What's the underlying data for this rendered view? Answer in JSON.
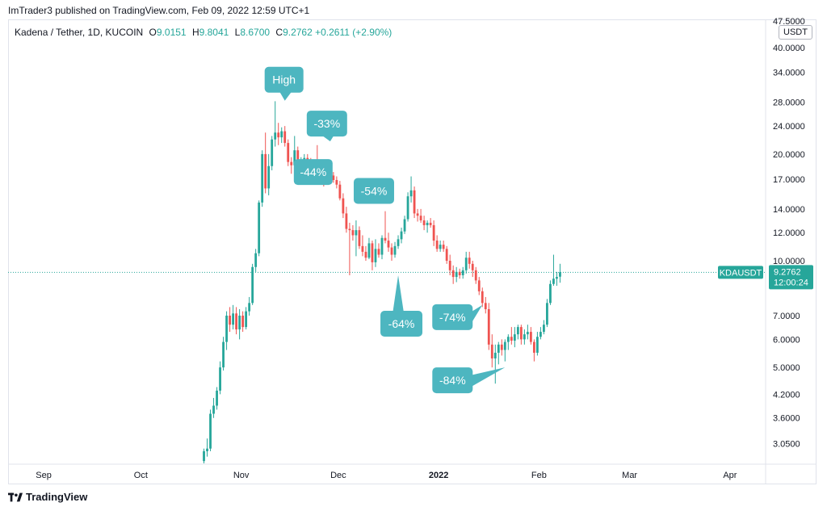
{
  "header": {
    "published_by": "ImTrader3 published on TradingView.com, Feb 09, 2022 12:59 UTC+1"
  },
  "legend": {
    "symbol": "Kadena / Tether, 1D, KUCOIN",
    "open_label": "O",
    "open": "9.0151",
    "high_label": "H",
    "high": "9.8041",
    "low_label": "L",
    "low": "8.6700",
    "close_label": "C",
    "close": "9.2762",
    "change": "+0.2611 (+2.90%)"
  },
  "currency": "USDT",
  "footer": {
    "brand": "TradingView"
  },
  "colors": {
    "up": "#26a69a",
    "down": "#ef5350",
    "callout": "#4db6c0",
    "price_line": "#26a69a"
  },
  "chart_data": {
    "type": "candlestick",
    "scale": "log",
    "x_axis": {
      "labels": [
        {
          "text": "Sep",
          "date": "2021-09-01"
        },
        {
          "text": "Oct",
          "date": "2021-10-01"
        },
        {
          "text": "Nov",
          "date": "2021-11-01"
        },
        {
          "text": "Dec",
          "date": "2021-12-01"
        },
        {
          "text": "2022",
          "date": "2022-01-01",
          "bold": true
        },
        {
          "text": "Feb",
          "date": "2022-02-01"
        },
        {
          "text": "Mar",
          "date": "2022-03-01"
        },
        {
          "text": "Apr",
          "date": "2022-04-01"
        }
      ],
      "range": [
        "2021-08-21",
        "2022-04-12"
      ]
    },
    "y_axis": {
      "ticks": [
        "3.0500",
        "3.6000",
        "4.2000",
        "5.0000",
        "6.0000",
        "7.0000",
        "10.0000",
        "12.0000",
        "14.0000",
        "17.0000",
        "20.0000",
        "24.0000",
        "28.0000",
        "34.0000",
        "40.0000",
        "47.5000"
      ],
      "range": [
        2.68,
        48
      ]
    },
    "last_price": {
      "symbol": "KDAUSDT",
      "price": "9.2762",
      "countdown": "12:00:24",
      "value": 9.2762
    },
    "annotations": [
      {
        "text": "High",
        "date": "2021-11-10",
        "price": 28
      },
      {
        "text": "-33%",
        "date": "2021-11-24",
        "price": 21.5
      },
      {
        "text": "-44%",
        "date": "2021-11-24",
        "price": 17.8
      },
      {
        "text": "-54%",
        "date": "2021-12-13",
        "price": 14.4
      },
      {
        "text": "-64%",
        "date": "2021-12-19",
        "price": 9.1
      },
      {
        "text": "-74%",
        "date": "2022-01-14",
        "price": 7.5
      },
      {
        "text": "-84%",
        "date": "2022-01-21",
        "price": 5.0
      }
    ],
    "candles": [
      {
        "d": "2021-10-20",
        "o": 2.72,
        "h": 2.95,
        "l": 2.68,
        "c": 2.9
      },
      {
        "d": "2021-10-21",
        "o": 2.9,
        "h": 3.15,
        "l": 2.8,
        "c": 2.95
      },
      {
        "d": "2021-10-22",
        "o": 2.95,
        "h": 3.8,
        "l": 2.9,
        "c": 3.7
      },
      {
        "d": "2021-10-23",
        "o": 3.7,
        "h": 4.1,
        "l": 3.6,
        "c": 3.9
      },
      {
        "d": "2021-10-24",
        "o": 3.9,
        "h": 4.4,
        "l": 3.8,
        "c": 4.3
      },
      {
        "d": "2021-10-25",
        "o": 4.3,
        "h": 5.2,
        "l": 4.2,
        "c": 5.0
      },
      {
        "d": "2021-10-26",
        "o": 5.0,
        "h": 6.1,
        "l": 4.9,
        "c": 5.9
      },
      {
        "d": "2021-10-27",
        "o": 5.9,
        "h": 7.2,
        "l": 5.6,
        "c": 7.0
      },
      {
        "d": "2021-10-28",
        "o": 7.0,
        "h": 7.4,
        "l": 6.3,
        "c": 6.6
      },
      {
        "d": "2021-10-29",
        "o": 6.6,
        "h": 7.5,
        "l": 6.4,
        "c": 7.1
      },
      {
        "d": "2021-10-30",
        "o": 7.1,
        "h": 7.4,
        "l": 6.2,
        "c": 6.4
      },
      {
        "d": "2021-10-31",
        "o": 6.4,
        "h": 7.3,
        "l": 6.0,
        "c": 7.0
      },
      {
        "d": "2021-11-01",
        "o": 7.0,
        "h": 7.2,
        "l": 6.3,
        "c": 6.5
      },
      {
        "d": "2021-11-02",
        "o": 6.5,
        "h": 7.4,
        "l": 6.4,
        "c": 7.2
      },
      {
        "d": "2021-11-03",
        "o": 7.2,
        "h": 7.9,
        "l": 7.0,
        "c": 7.6
      },
      {
        "d": "2021-11-04",
        "o": 7.6,
        "h": 9.8,
        "l": 7.5,
        "c": 9.6
      },
      {
        "d": "2021-11-05",
        "o": 9.6,
        "h": 10.8,
        "l": 9.3,
        "c": 10.5
      },
      {
        "d": "2021-11-06",
        "o": 10.5,
        "h": 14.8,
        "l": 10.3,
        "c": 14.6
      },
      {
        "d": "2021-11-07",
        "o": 14.6,
        "h": 20.5,
        "l": 14.2,
        "c": 20.0
      },
      {
        "d": "2021-11-08",
        "o": 20.0,
        "h": 23.0,
        "l": 15.5,
        "c": 16.0
      },
      {
        "d": "2021-11-09",
        "o": 16.0,
        "h": 20.0,
        "l": 15.3,
        "c": 18.5
      },
      {
        "d": "2021-11-10",
        "o": 18.5,
        "h": 22.5,
        "l": 18.0,
        "c": 22.0
      },
      {
        "d": "2021-11-11",
        "o": 22.0,
        "h": 28.2,
        "l": 21.0,
        "c": 23.0
      },
      {
        "d": "2021-11-12",
        "o": 23.0,
        "h": 24.5,
        "l": 21.2,
        "c": 22.3
      },
      {
        "d": "2021-11-13",
        "o": 22.3,
        "h": 23.8,
        "l": 21.5,
        "c": 23.2
      },
      {
        "d": "2021-11-14",
        "o": 23.2,
        "h": 24.0,
        "l": 21.0,
        "c": 21.5
      },
      {
        "d": "2021-11-15",
        "o": 21.5,
        "h": 22.0,
        "l": 18.5,
        "c": 19.0
      },
      {
        "d": "2021-11-16",
        "o": 19.0,
        "h": 19.6,
        "l": 17.6,
        "c": 18.6
      },
      {
        "d": "2021-11-17",
        "o": 18.6,
        "h": 22.5,
        "l": 18.2,
        "c": 20.5
      },
      {
        "d": "2021-11-18",
        "o": 20.5,
        "h": 21.0,
        "l": 18.2,
        "c": 19.0
      },
      {
        "d": "2021-11-19",
        "o": 19.0,
        "h": 19.6,
        "l": 18.2,
        "c": 19.2
      },
      {
        "d": "2021-11-20",
        "o": 19.2,
        "h": 20.0,
        "l": 18.6,
        "c": 19.5
      },
      {
        "d": "2021-11-21",
        "o": 19.5,
        "h": 20.0,
        "l": 18.4,
        "c": 18.8
      },
      {
        "d": "2021-11-22",
        "o": 18.8,
        "h": 19.5,
        "l": 17.0,
        "c": 17.5
      },
      {
        "d": "2021-11-23",
        "o": 17.5,
        "h": 18.8,
        "l": 17.2,
        "c": 18.3
      },
      {
        "d": "2021-11-24",
        "o": 18.3,
        "h": 21.2,
        "l": 16.6,
        "c": 17.0
      },
      {
        "d": "2021-11-25",
        "o": 17.0,
        "h": 18.0,
        "l": 16.6,
        "c": 17.6
      },
      {
        "d": "2021-11-26",
        "o": 17.6,
        "h": 17.8,
        "l": 16.2,
        "c": 16.9
      },
      {
        "d": "2021-11-27",
        "o": 16.9,
        "h": 17.5,
        "l": 16.5,
        "c": 17.0
      },
      {
        "d": "2021-11-28",
        "o": 17.0,
        "h": 17.8,
        "l": 16.6,
        "c": 17.4
      },
      {
        "d": "2021-11-29",
        "o": 17.4,
        "h": 17.8,
        "l": 16.6,
        "c": 16.9
      },
      {
        "d": "2021-11-30",
        "o": 16.9,
        "h": 17.3,
        "l": 16.0,
        "c": 16.4
      },
      {
        "d": "2021-12-01",
        "o": 16.4,
        "h": 16.8,
        "l": 14.8,
        "c": 15.0
      },
      {
        "d": "2021-12-02",
        "o": 15.0,
        "h": 15.5,
        "l": 13.2,
        "c": 13.6
      },
      {
        "d": "2021-12-03",
        "o": 13.6,
        "h": 14.2,
        "l": 12.0,
        "c": 12.3
      },
      {
        "d": "2021-12-04",
        "o": 12.3,
        "h": 12.8,
        "l": 9.1,
        "c": 12.2
      },
      {
        "d": "2021-12-05",
        "o": 12.2,
        "h": 12.6,
        "l": 11.4,
        "c": 11.8
      },
      {
        "d": "2021-12-06",
        "o": 11.8,
        "h": 13.0,
        "l": 10.3,
        "c": 12.2
      },
      {
        "d": "2021-12-07",
        "o": 12.2,
        "h": 12.5,
        "l": 10.8,
        "c": 11.0
      },
      {
        "d": "2021-12-08",
        "o": 11.0,
        "h": 11.8,
        "l": 10.3,
        "c": 10.6
      },
      {
        "d": "2021-12-09",
        "o": 10.6,
        "h": 11.0,
        "l": 10.0,
        "c": 10.2
      },
      {
        "d": "2021-12-10",
        "o": 10.2,
        "h": 11.6,
        "l": 10.1,
        "c": 11.2
      },
      {
        "d": "2021-12-11",
        "o": 11.2,
        "h": 11.4,
        "l": 9.4,
        "c": 9.9
      },
      {
        "d": "2021-12-12",
        "o": 9.9,
        "h": 11.5,
        "l": 9.6,
        "c": 10.8
      },
      {
        "d": "2021-12-13",
        "o": 10.8,
        "h": 11.2,
        "l": 10.2,
        "c": 10.4
      },
      {
        "d": "2021-12-14",
        "o": 10.4,
        "h": 11.8,
        "l": 10.1,
        "c": 11.6
      },
      {
        "d": "2021-12-15",
        "o": 11.6,
        "h": 13.8,
        "l": 11.2,
        "c": 11.4
      },
      {
        "d": "2021-12-16",
        "o": 11.4,
        "h": 12.0,
        "l": 10.6,
        "c": 10.9
      },
      {
        "d": "2021-12-17",
        "o": 10.9,
        "h": 11.2,
        "l": 10.0,
        "c": 10.4
      },
      {
        "d": "2021-12-18",
        "o": 10.4,
        "h": 11.3,
        "l": 10.2,
        "c": 11.0
      },
      {
        "d": "2021-12-19",
        "o": 11.0,
        "h": 11.8,
        "l": 10.8,
        "c": 11.5
      },
      {
        "d": "2021-12-20",
        "o": 11.5,
        "h": 12.4,
        "l": 11.2,
        "c": 12.1
      },
      {
        "d": "2021-12-21",
        "o": 12.1,
        "h": 13.4,
        "l": 11.9,
        "c": 13.1
      },
      {
        "d": "2021-12-22",
        "o": 13.1,
        "h": 15.6,
        "l": 12.9,
        "c": 15.2
      },
      {
        "d": "2021-12-23",
        "o": 15.2,
        "h": 17.3,
        "l": 14.6,
        "c": 15.8
      },
      {
        "d": "2021-12-24",
        "o": 15.8,
        "h": 16.2,
        "l": 13.2,
        "c": 13.6
      },
      {
        "d": "2021-12-25",
        "o": 13.6,
        "h": 14.0,
        "l": 12.9,
        "c": 13.4
      },
      {
        "d": "2021-12-26",
        "o": 13.4,
        "h": 14.0,
        "l": 12.8,
        "c": 13.0
      },
      {
        "d": "2021-12-27",
        "o": 13.0,
        "h": 13.4,
        "l": 12.2,
        "c": 12.6
      },
      {
        "d": "2021-12-28",
        "o": 12.6,
        "h": 13.0,
        "l": 12.0,
        "c": 12.8
      },
      {
        "d": "2021-12-29",
        "o": 12.8,
        "h": 13.2,
        "l": 12.4,
        "c": 12.6
      },
      {
        "d": "2021-12-30",
        "o": 12.6,
        "h": 13.0,
        "l": 11.0,
        "c": 11.4
      },
      {
        "d": "2021-12-31",
        "o": 11.4,
        "h": 11.8,
        "l": 10.6,
        "c": 10.8
      },
      {
        "d": "2022-01-01",
        "o": 10.8,
        "h": 11.4,
        "l": 10.6,
        "c": 11.1
      },
      {
        "d": "2022-01-02",
        "o": 11.1,
        "h": 11.4,
        "l": 10.6,
        "c": 10.8
      },
      {
        "d": "2022-01-03",
        "o": 10.8,
        "h": 11.0,
        "l": 9.8,
        "c": 10.0
      },
      {
        "d": "2022-01-04",
        "o": 10.0,
        "h": 10.4,
        "l": 9.1,
        "c": 9.4
      },
      {
        "d": "2022-01-05",
        "o": 9.4,
        "h": 9.7,
        "l": 8.6,
        "c": 9.0
      },
      {
        "d": "2022-01-06",
        "o": 9.0,
        "h": 9.6,
        "l": 8.7,
        "c": 9.3
      },
      {
        "d": "2022-01-07",
        "o": 9.3,
        "h": 9.5,
        "l": 8.9,
        "c": 9.1
      },
      {
        "d": "2022-01-08",
        "o": 9.1,
        "h": 9.6,
        "l": 8.9,
        "c": 9.4
      },
      {
        "d": "2022-01-09",
        "o": 9.4,
        "h": 10.6,
        "l": 9.2,
        "c": 10.2
      },
      {
        "d": "2022-01-10",
        "o": 10.2,
        "h": 10.6,
        "l": 9.5,
        "c": 9.8
      },
      {
        "d": "2022-01-11",
        "o": 9.8,
        "h": 10.0,
        "l": 9.0,
        "c": 9.4
      },
      {
        "d": "2022-01-12",
        "o": 9.4,
        "h": 9.6,
        "l": 8.6,
        "c": 8.8
      },
      {
        "d": "2022-01-13",
        "o": 8.8,
        "h": 9.0,
        "l": 8.0,
        "c": 8.2
      },
      {
        "d": "2022-01-14",
        "o": 8.2,
        "h": 8.4,
        "l": 7.4,
        "c": 7.6
      },
      {
        "d": "2022-01-15",
        "o": 7.6,
        "h": 7.9,
        "l": 7.1,
        "c": 7.3
      },
      {
        "d": "2022-01-16",
        "o": 7.3,
        "h": 7.6,
        "l": 5.6,
        "c": 5.8
      },
      {
        "d": "2022-01-17",
        "o": 5.8,
        "h": 6.2,
        "l": 5.0,
        "c": 5.3
      },
      {
        "d": "2022-01-18",
        "o": 5.3,
        "h": 5.8,
        "l": 4.5,
        "c": 5.5
      },
      {
        "d": "2022-01-19",
        "o": 5.5,
        "h": 5.9,
        "l": 5.1,
        "c": 5.8
      },
      {
        "d": "2022-01-20",
        "o": 5.8,
        "h": 6.0,
        "l": 5.4,
        "c": 5.6
      },
      {
        "d": "2022-01-21",
        "o": 5.6,
        "h": 6.0,
        "l": 5.2,
        "c": 5.9
      },
      {
        "d": "2022-01-22",
        "o": 5.9,
        "h": 6.2,
        "l": 5.6,
        "c": 6.1
      },
      {
        "d": "2022-01-23",
        "o": 6.1,
        "h": 6.5,
        "l": 5.8,
        "c": 5.95
      },
      {
        "d": "2022-01-24",
        "o": 5.95,
        "h": 6.5,
        "l": 5.7,
        "c": 6.2
      },
      {
        "d": "2022-01-25",
        "o": 6.2,
        "h": 6.6,
        "l": 6.0,
        "c": 6.5
      },
      {
        "d": "2022-01-26",
        "o": 6.5,
        "h": 6.6,
        "l": 5.8,
        "c": 6.0
      },
      {
        "d": "2022-01-27",
        "o": 6.0,
        "h": 6.4,
        "l": 5.8,
        "c": 6.2
      },
      {
        "d": "2022-01-28",
        "o": 6.2,
        "h": 6.6,
        "l": 6.0,
        "c": 6.3
      },
      {
        "d": "2022-01-29",
        "o": 6.3,
        "h": 6.5,
        "l": 5.8,
        "c": 5.9
      },
      {
        "d": "2022-01-30",
        "o": 5.9,
        "h": 6.0,
        "l": 5.2,
        "c": 5.5
      },
      {
        "d": "2022-01-31",
        "o": 5.5,
        "h": 6.3,
        "l": 5.4,
        "c": 6.1
      },
      {
        "d": "2022-02-01",
        "o": 6.1,
        "h": 6.5,
        "l": 6.0,
        "c": 6.3
      },
      {
        "d": "2022-02-02",
        "o": 6.3,
        "h": 6.8,
        "l": 6.2,
        "c": 6.6
      },
      {
        "d": "2022-02-03",
        "o": 6.6,
        "h": 7.8,
        "l": 6.5,
        "c": 7.6
      },
      {
        "d": "2022-02-04",
        "o": 7.6,
        "h": 8.8,
        "l": 7.5,
        "c": 8.6
      },
      {
        "d": "2022-02-05",
        "o": 8.6,
        "h": 10.4,
        "l": 8.5,
        "c": 8.9
      },
      {
        "d": "2022-02-06",
        "o": 8.9,
        "h": 9.3,
        "l": 8.5,
        "c": 9.0
      },
      {
        "d": "2022-02-07",
        "o": 9.0151,
        "h": 9.8041,
        "l": 8.67,
        "c": 9.2762
      }
    ]
  }
}
